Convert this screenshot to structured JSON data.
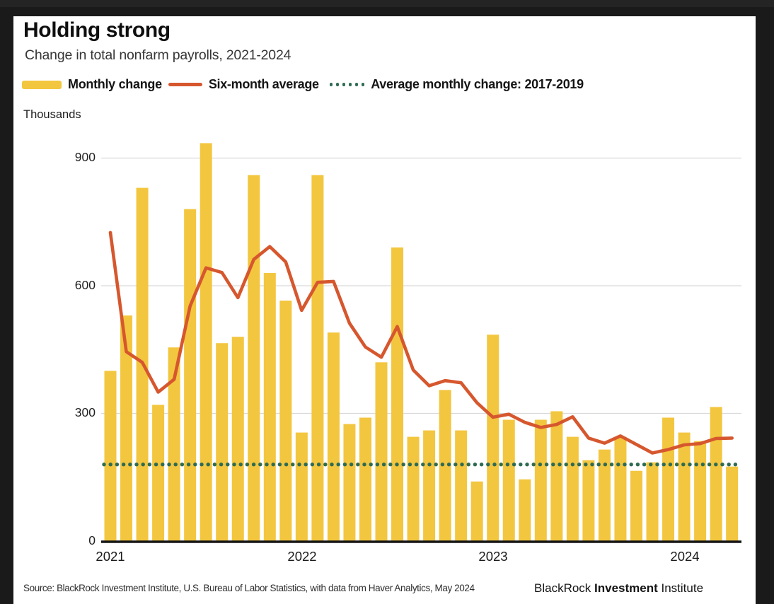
{
  "header": {
    "title": "Holding strong",
    "subtitle": "Change in total nonfarm payrolls, 2021-2024"
  },
  "chart_data": {
    "type": "bar",
    "title": "Holding strong",
    "subtitle": "Change in total nonfarm payrolls, 2021-2024",
    "ylabel": "Thousands",
    "ylim": [
      0,
      960
    ],
    "yticks": [
      0,
      300,
      600,
      900
    ],
    "xticks": [
      "2021",
      "2022",
      "2023",
      "2024"
    ],
    "grid": true,
    "legend_position": "top",
    "categories": [
      "2021-01",
      "2021-02",
      "2021-03",
      "2021-04",
      "2021-05",
      "2021-06",
      "2021-07",
      "2021-08",
      "2021-09",
      "2021-10",
      "2021-11",
      "2021-12",
      "2022-01",
      "2022-02",
      "2022-03",
      "2022-04",
      "2022-05",
      "2022-06",
      "2022-07",
      "2022-08",
      "2022-09",
      "2022-10",
      "2022-11",
      "2022-12",
      "2023-01",
      "2023-02",
      "2023-03",
      "2023-04",
      "2023-05",
      "2023-06",
      "2023-07",
      "2023-08",
      "2023-09",
      "2023-10",
      "2023-11",
      "2023-12",
      "2024-01",
      "2024-02",
      "2024-03",
      "2024-04"
    ],
    "series": [
      {
        "name": "Monthly change",
        "type": "bar",
        "color": "#F3C63F",
        "values": [
          400,
          530,
          830,
          320,
          455,
          780,
          935,
          465,
          480,
          860,
          630,
          565,
          255,
          860,
          490,
          275,
          290,
          420,
          690,
          245,
          260,
          355,
          260,
          140,
          485,
          285,
          145,
          285,
          305,
          245,
          190,
          215,
          245,
          165,
          185,
          290,
          255,
          235,
          315,
          175
        ]
      },
      {
        "name": "Six-month average",
        "type": "line",
        "color": "#D6572E",
        "values": [
          725,
          445,
          420,
          350,
          380,
          552,
          642,
          631,
          572,
          662,
          692,
          656,
          542,
          608,
          610,
          512,
          456,
          432,
          504,
          402,
          365,
          377,
          372,
          325,
          291,
          298,
          279,
          267,
          274,
          292,
          242,
          230,
          247,
          227,
          207,
          215,
          226,
          229,
          241,
          242
        ]
      },
      {
        "name": "Average monthly change: 2017-2019",
        "type": "dotted-hline",
        "color": "#2E6B52",
        "value": 180
      }
    ]
  },
  "footer": {
    "source": "Source: BlackRock Investment Institute, U.S. Bureau of Labor Statistics, with data from Haver Analytics, May 2024",
    "brand": {
      "pre": "BlackRock ",
      "bold": "Investment",
      "post": " Institute"
    }
  }
}
